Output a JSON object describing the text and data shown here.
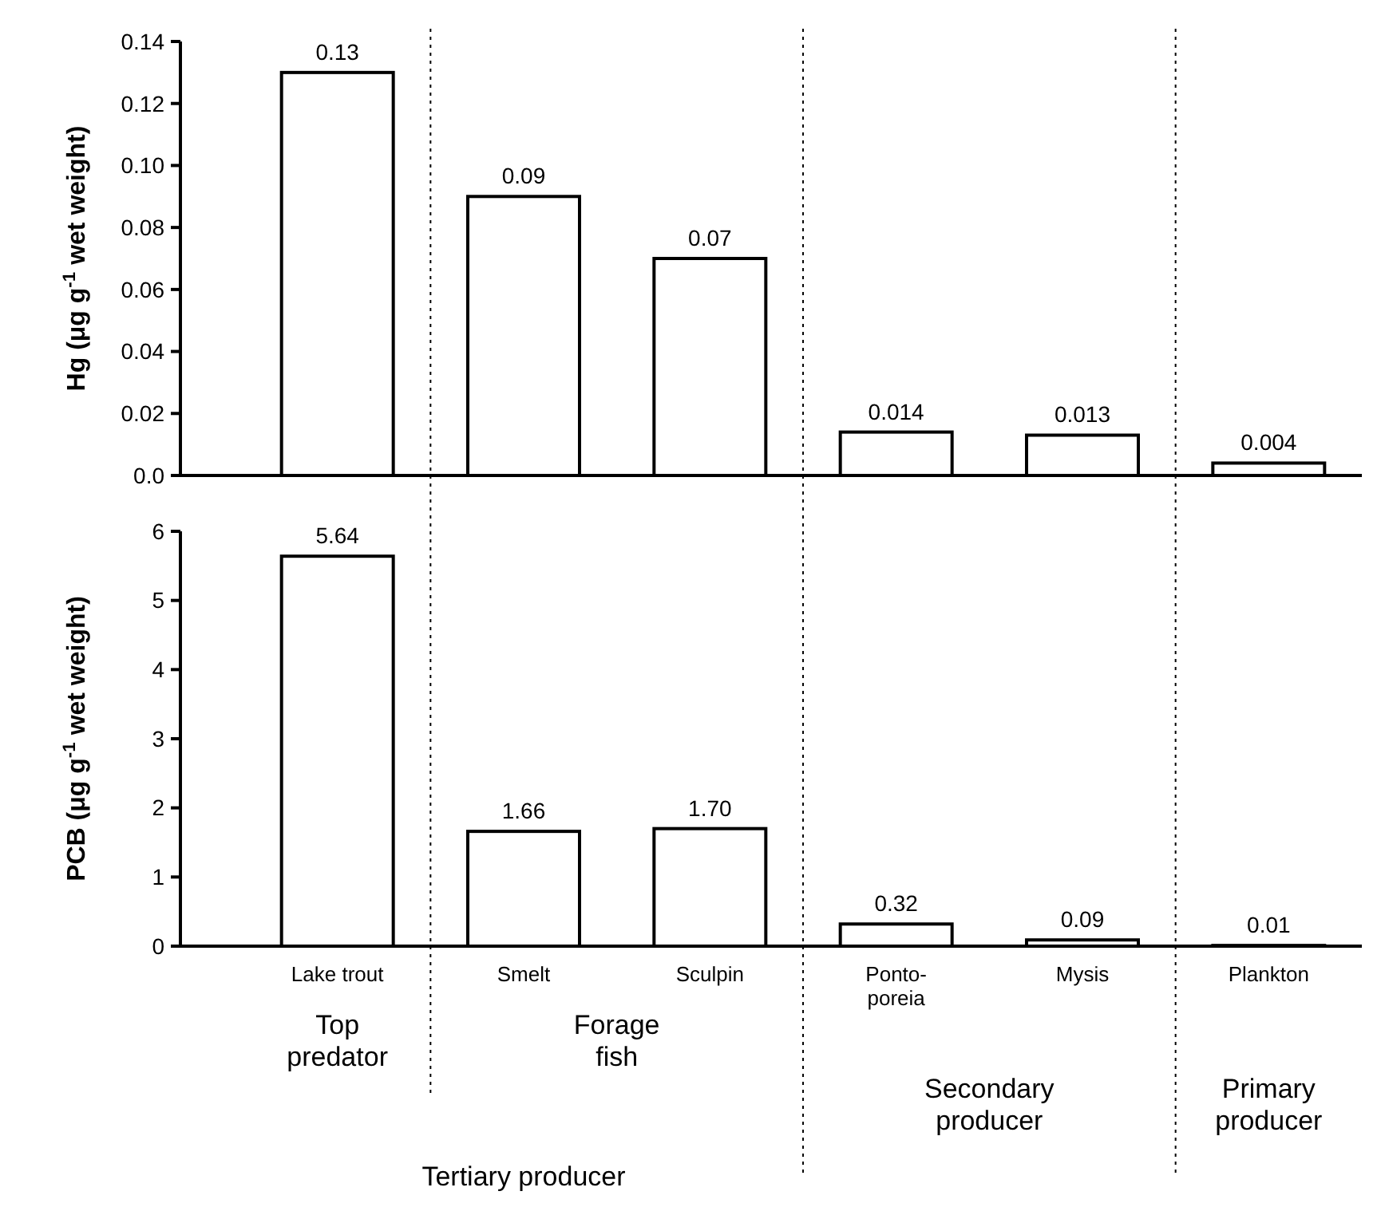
{
  "chart_data": [
    {
      "type": "bar",
      "ylabel": "Hg  (μg g$^{-1}$ wet weight)",
      "categories": [
        null,
        null,
        null,
        null,
        null,
        null
      ],
      "values": [
        0.13,
        0.09,
        0.07,
        0.014,
        0.013,
        0.004
      ],
      "value_labels": [
        "0.13",
        "0.09",
        "0.07",
        "0.014",
        "0.013",
        "0.004"
      ],
      "color": "#ffffff",
      "ylim": [
        0,
        0.14
      ],
      "yticks": [
        {
          "value": 0,
          "label": "0.0"
        },
        0.02,
        0.04,
        0.06,
        0.08,
        {
          "value": 0.1,
          "label": "0.10"
        },
        0.12,
        0.14
      ],
      "tick_labels": "y"
    },
    {
      "type": "bar",
      "ylabel": "PCB  (μg g$^{-1}$ wet weight)",
      "categories": [
        "Lake trout",
        "Smelt",
        "Sculpin",
        "Ponto-poreia",
        "Mysis",
        "Plankton"
      ],
      "values": [
        5.64,
        1.66,
        1.7,
        0.32,
        0.09,
        0.01
      ],
      "value_labels": [
        "5.64",
        "1.66",
        "1.70",
        "0.32",
        "0.09",
        "0.01"
      ],
      "color": "#ffffff",
      "ylim": [
        0,
        6
      ],
      "yticks": [
        0,
        1,
        2,
        3,
        4,
        5,
        6
      ],
      "annotations": [
        "Top predator",
        "Forage fish",
        "Secondary producer",
        "Primary producer",
        "Tertiary producer"
      ]
    }
  ]
}
